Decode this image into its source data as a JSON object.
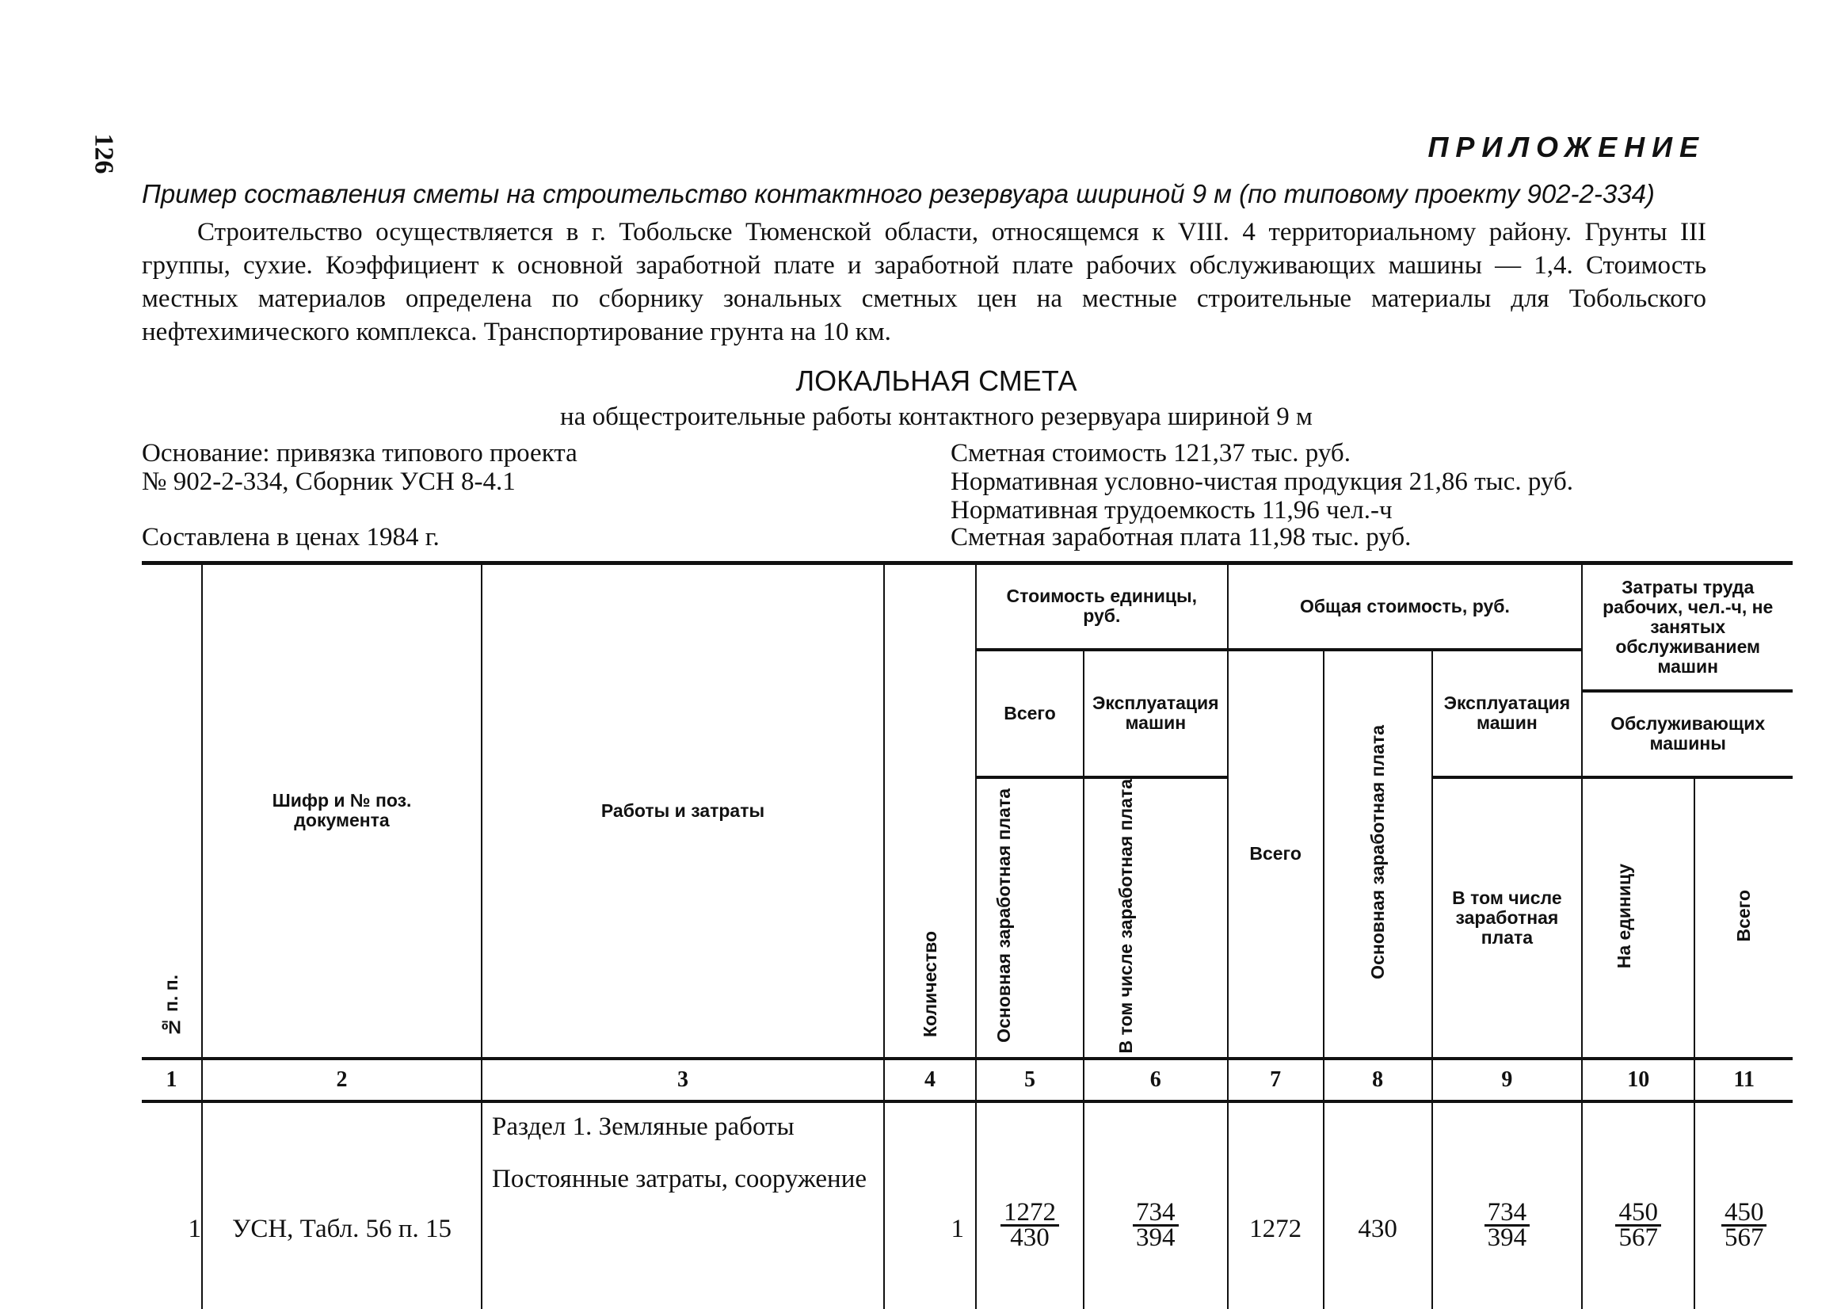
{
  "page_number": "126",
  "appendix": "ПРИЛОЖЕНИЕ",
  "intro_title": "Пример составления сметы на строительство  контактного резервуара шириной 9 м  (по типовому проекту 902-2-334)",
  "intro_text": "Строительство осуществляется в г. Тобольске Тюменской  области,  относящемся  к  VIII. 4  территориальному району. Грунты III группы, сухие. Коэффициент к основной заработной  плате  и  заработной  плате  рабочих обслуживающих машины — 1,4. Стоимость местных материалов определена по сборнику зональных сметных цен на местные строительные материалы для Тобольского нефтехимического комплекса. Транспортирование грунта на 10 км.",
  "estimate": {
    "title": "ЛОКАЛЬНАЯ СМЕТА",
    "subtitle": "на общестроительные работы контактного резервуара шириной 9 м",
    "basis_1": "Основание: привязка типового проекта",
    "basis_2": "№ 902-2-334, Сборник УСН 8-4.1",
    "prices": "Составлена в ценах 1984 г.",
    "cost": "Сметная стоимость 121,37 тыс. руб.",
    "net_product": "Нормативная условно-чистая продукция 21,86 тыс. руб.",
    "labor": "Нормативная трудоемкость 11,96 чел.-ч",
    "wages": "Сметная  заработная плата 11,98 тыс. руб."
  },
  "table": {
    "headers": {
      "c1": "№ п. п.",
      "c2": "Шифр и № поз. документа",
      "c3": "Работы и затраты",
      "c4": "Количество",
      "unit_cost": "Стоимость единицы, руб.",
      "c5_top": "Всего",
      "c6_top": "Эксплуатация машин",
      "c5_bottom": "Основная заработная плата",
      "c6_bottom": "В том числе заработная плата",
      "total_cost": "Общая стоимость, руб.",
      "c7": "Всего",
      "c8": "Основная заработная плата",
      "c9_top": "Эксплуатация машин",
      "c9_bottom": "В том числе заработная плата",
      "labor": "Затраты труда рабочих, чел.-ч, не занятых обслуживанием машин",
      "serving": "Обслуживающих машины",
      "c10": "На единицу",
      "c11": "Всего"
    },
    "column_numbers": [
      "1",
      "2",
      "3",
      "4",
      "5",
      "6",
      "7",
      "8",
      "9",
      "10",
      "11"
    ],
    "section": "Раздел 1. Земляные работы",
    "rows": [
      {
        "n": "1",
        "code": "УСН, Табл. 56 п. 15",
        "work": "Постоянные затраты, сооружение",
        "qty": "1",
        "c5_top": "1272",
        "c5_bottom": "430",
        "c6_top": "734",
        "c6_bottom": "394",
        "c7": "1272",
        "c8": "430",
        "c9_top": "734",
        "c9_bottom": "394",
        "c10_top": "450",
        "c10_bottom": "567",
        "c11_top": "450",
        "c11_bottom": "567"
      }
    ]
  }
}
